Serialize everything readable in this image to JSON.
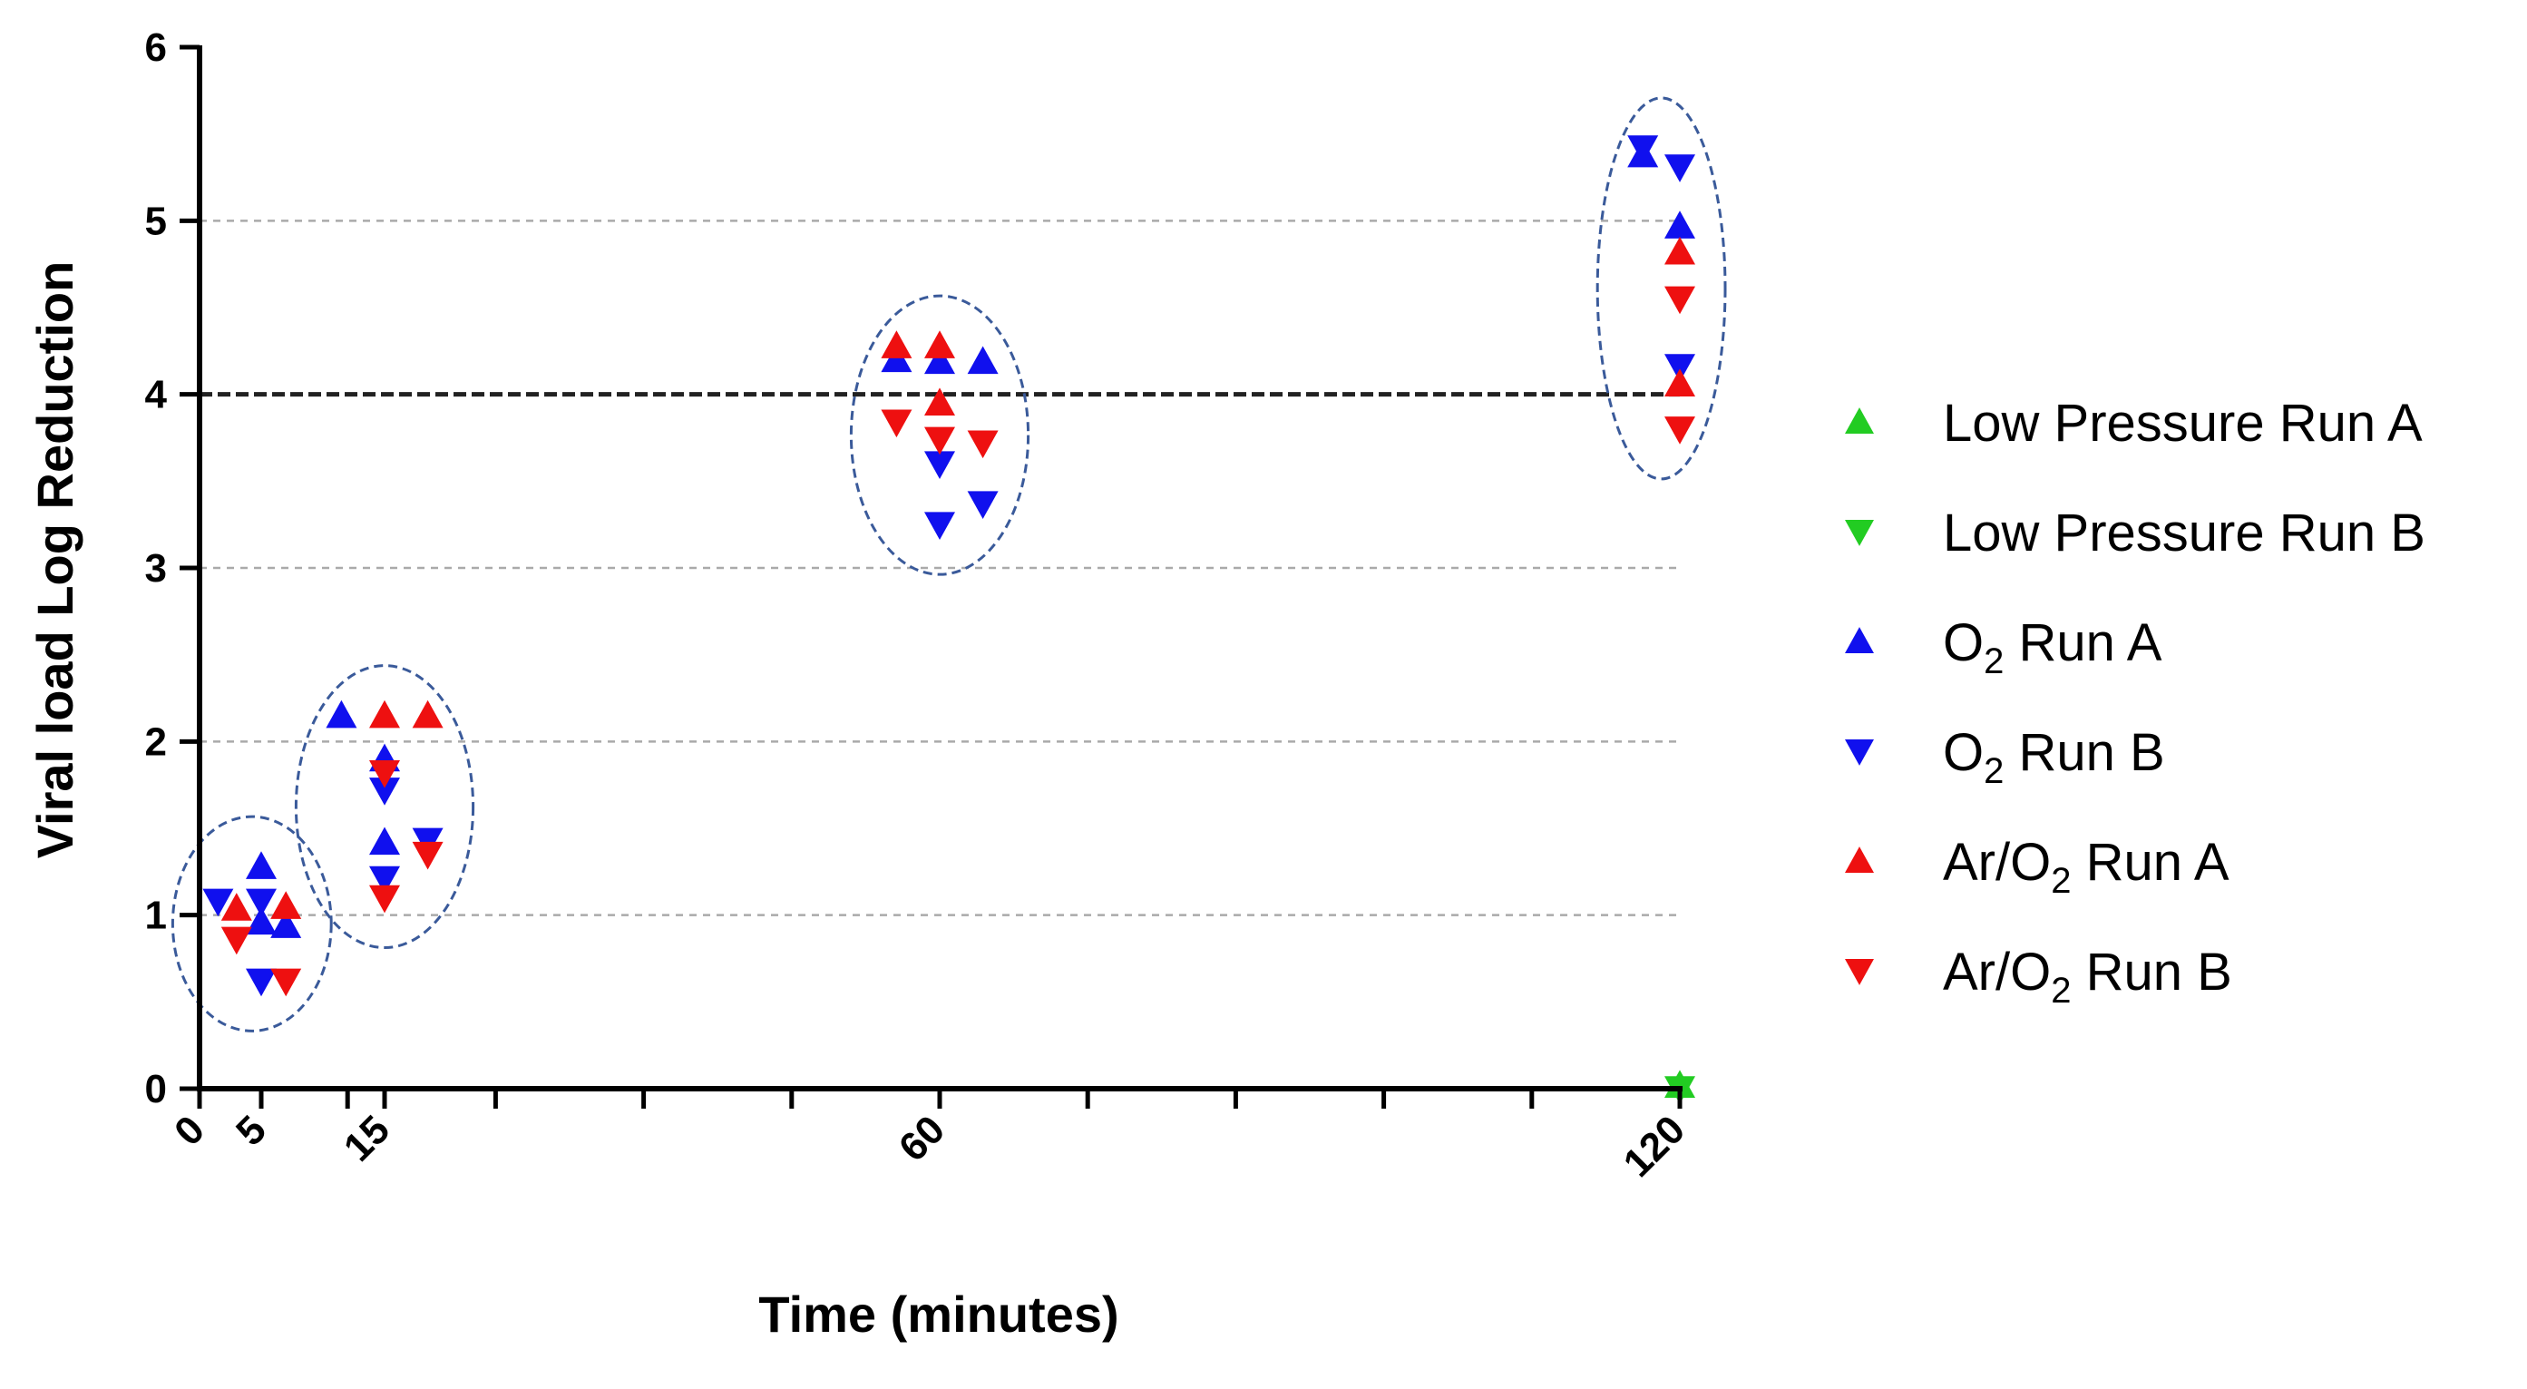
{
  "chart_data": {
    "type": "scatter",
    "title": "",
    "xlabel": "Time (minutes)",
    "ylabel": "Viral load Log Reduction",
    "xlim": [
      0,
      120
    ],
    "ylim": [
      0,
      6
    ],
    "x_ticks_labeled": [
      0,
      5,
      15,
      60,
      120
    ],
    "x_ticks_minor": [
      0,
      12,
      24,
      36,
      48,
      60,
      72,
      84,
      96,
      108,
      120
    ],
    "y_ticks": [
      0,
      1,
      2,
      3,
      4,
      5,
      6
    ],
    "grid_y": [
      1,
      2,
      3,
      5
    ],
    "threshold_line": 4,
    "legend_position": "right",
    "series": [
      {
        "name": "Low Pressure Run A",
        "label_parts": [
          "Low Pressure Run A"
        ],
        "color": "#22cc22",
        "marker": "triangle-up",
        "points": [
          [
            120,
            0.02
          ]
        ]
      },
      {
        "name": "Low Pressure Run B",
        "label_parts": [
          "Low Pressure Run B"
        ],
        "color": "#22cc22",
        "marker": "triangle-down",
        "points": [
          [
            120,
            0.0
          ]
        ]
      },
      {
        "name": "O2 Run A",
        "label_parts": [
          "O",
          "2",
          " Run A"
        ],
        "color": "#1010ee",
        "marker": "triangle-up",
        "points": [
          [
            5,
            1.28
          ],
          [
            5,
            0.96
          ],
          [
            7,
            0.94
          ],
          [
            11.5,
            2.15
          ],
          [
            15,
            1.9
          ],
          [
            15,
            1.42
          ],
          [
            56.5,
            4.2
          ],
          [
            60,
            4.19
          ],
          [
            63.5,
            4.19
          ],
          [
            117,
            5.38
          ],
          [
            120,
            4.97
          ]
        ]
      },
      {
        "name": "O2 Run B",
        "label_parts": [
          "O",
          "2",
          " Run B"
        ],
        "color": "#1010ee",
        "marker": "triangle-down",
        "points": [
          [
            1.5,
            1.08
          ],
          [
            5,
            1.08
          ],
          [
            5,
            0.62
          ],
          [
            15,
            1.72
          ],
          [
            15,
            1.21
          ],
          [
            18.5,
            1.43
          ],
          [
            60,
            3.6
          ],
          [
            60,
            3.25
          ],
          [
            63.5,
            3.37
          ],
          [
            117,
            5.42
          ],
          [
            120,
            5.31
          ],
          [
            120,
            4.16
          ]
        ]
      },
      {
        "name": "Ar/O2 Run A",
        "label_parts": [
          "Ar/O",
          "2",
          " Run A"
        ],
        "color": "#ee1010",
        "marker": "triangle-up",
        "points": [
          [
            3,
            1.04
          ],
          [
            7,
            1.05
          ],
          [
            15,
            2.15
          ],
          [
            18.5,
            2.15
          ],
          [
            56.5,
            4.28
          ],
          [
            60,
            4.28
          ],
          [
            60,
            3.95
          ],
          [
            120,
            4.82
          ],
          [
            120,
            4.06
          ]
        ]
      },
      {
        "name": "Ar/O2 Run B",
        "label_parts": [
          "Ar/O",
          "2",
          " Run B"
        ],
        "color": "#ee1010",
        "marker": "triangle-down",
        "points": [
          [
            3,
            0.86
          ],
          [
            7,
            0.62
          ],
          [
            15,
            1.82
          ],
          [
            15,
            1.1
          ],
          [
            18.5,
            1.35
          ],
          [
            56.5,
            3.84
          ],
          [
            60,
            3.74
          ],
          [
            63.5,
            3.72
          ],
          [
            120,
            4.55
          ],
          [
            120,
            3.8
          ]
        ]
      }
    ],
    "cluster_ellipses_at_x": [
      5,
      15,
      60,
      120
    ]
  }
}
